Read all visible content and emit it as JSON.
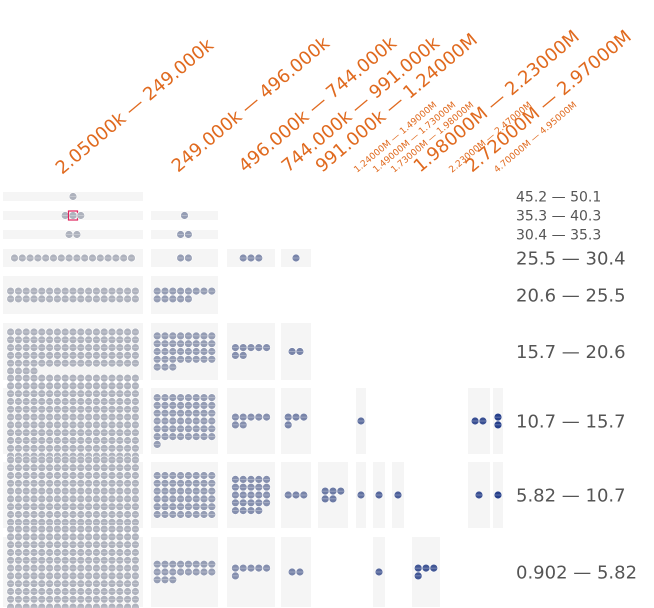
{
  "chart_data": {
    "type": "table",
    "title": "",
    "xlabel": "",
    "ylabel": "",
    "columns": [
      "2.05000k — 249.000k",
      "249.000k — 496.000k",
      "496.000k — 744.000k",
      "744.000k — 991.000k",
      "991.000k — 1.24000M",
      "1.24000M — 1.49000M",
      "1.49000M — 1.73000M",
      "1.73000M — 1.98000M",
      "1.98000M — 2.23000M",
      "2.23000M — 2.47000M",
      "2.72000M — 2.97000M",
      "4.70000M — 4.95000M"
    ],
    "rows": [
      "45.2 — 50.1",
      "35.3 — 40.3",
      "30.4 — 35.3",
      "25.5 — 30.4",
      "20.6 — 25.5",
      "15.7 — 20.6",
      "10.7 — 15.7",
      "5.82 — 10.7",
      "0.902 — 5.82"
    ],
    "counts": [
      [
        1,
        0,
        0,
        0,
        0,
        0,
        0,
        0,
        0,
        0,
        0,
        0
      ],
      [
        3,
        1,
        0,
        0,
        0,
        0,
        0,
        0,
        0,
        0,
        0,
        0
      ],
      [
        2,
        2,
        0,
        0,
        0,
        0,
        0,
        0,
        0,
        0,
        0,
        0
      ],
      [
        16,
        2,
        3,
        1,
        0,
        0,
        0,
        0,
        0,
        0,
        0,
        0
      ],
      [
        34,
        13,
        0,
        0,
        0,
        0,
        0,
        0,
        0,
        0,
        0,
        0
      ],
      [
        89,
        35,
        7,
        2,
        0,
        0,
        0,
        0,
        0,
        0,
        0,
        0
      ],
      [
        192,
        49,
        7,
        4,
        0,
        1,
        0,
        0,
        0,
        2,
        0,
        2
      ],
      [
        161,
        48,
        24,
        3,
        5,
        1,
        1,
        1,
        0,
        1,
        0,
        1
      ],
      [
        195,
        19,
        6,
        2,
        0,
        0,
        1,
        0,
        4,
        0,
        0,
        0
      ]
    ],
    "highlight": {
      "row": 1,
      "col": 0,
      "index": 1
    },
    "colors": {
      "low": "#aeb2bd",
      "high": "#27408b",
      "label": "#e06a1f",
      "row_label": "#555555",
      "cell_bg": "#f5f5f5",
      "highlight": "#e0245e"
    }
  }
}
